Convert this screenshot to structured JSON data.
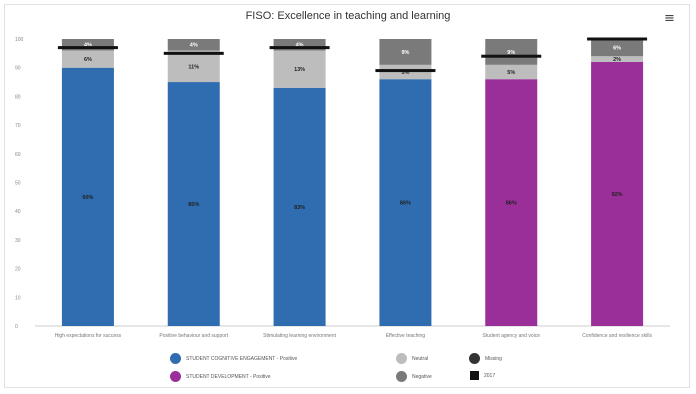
{
  "title": "FISO: Excellence in teaching and learning",
  "menu_icon": "hamburger-menu-icon",
  "colors": {
    "blue": "#2f6db0",
    "purple": "#9a2f9a",
    "neutral": "#bdbdbd",
    "negative": "#7a7a7a",
    "missing": "#333333",
    "marker": "#111111"
  },
  "legend": [
    {
      "label": "STUDENT COGNITIVE ENGAGEMENT - Positive",
      "color": "#2f6db0",
      "shape": "circle"
    },
    {
      "label": "STUDENT DEVELOPMENT - Positive",
      "color": "#9a2f9a",
      "shape": "circle"
    },
    {
      "label": "Neutral",
      "color": "#bdbdbd",
      "shape": "circle"
    },
    {
      "label": "Negative",
      "color": "#7a7a7a",
      "shape": "circle"
    },
    {
      "label": "Missing",
      "color": "#333333",
      "shape": "circle"
    },
    {
      "label": "2017",
      "color": "#111111",
      "shape": "square"
    }
  ],
  "chart_data": {
    "type": "bar",
    "stacked": true,
    "categories": [
      "High expectations for success",
      "Positive behaviour and support",
      "Stimulating learning environment",
      "Effective teaching",
      "Student agency and voice",
      "Confidence and resilience skills"
    ],
    "series": [
      {
        "name": "STUDENT COGNITIVE ENGAGEMENT - Positive",
        "values": [
          90,
          85,
          83,
          86,
          null,
          null
        ],
        "labels": [
          "90%",
          "85%",
          "83%",
          "86%",
          "",
          ""
        ]
      },
      {
        "name": "STUDENT DEVELOPMENT - Positive",
        "values": [
          null,
          null,
          null,
          null,
          86,
          92
        ],
        "labels": [
          "",
          "",
          "",
          "",
          "86%",
          "92%"
        ]
      },
      {
        "name": "Neutral",
        "values": [
          6,
          11,
          13,
          5,
          5,
          2
        ],
        "labels": [
          "6%",
          "11%",
          "13%",
          "5%",
          "5%",
          "2%"
        ]
      },
      {
        "name": "Negative",
        "values": [
          4,
          4,
          4,
          9,
          9,
          6
        ],
        "labels": [
          "4%",
          "4%",
          "4%",
          "9%",
          "9%",
          "6%"
        ]
      }
    ],
    "markers_2017": [
      97,
      95,
      97,
      89,
      94,
      100
    ],
    "ylim": [
      0,
      100
    ],
    "yticks": [
      0,
      10,
      20,
      30,
      40,
      50,
      60,
      70,
      80,
      90,
      100
    ],
    "legend_position": "bottom",
    "grid": false
  }
}
